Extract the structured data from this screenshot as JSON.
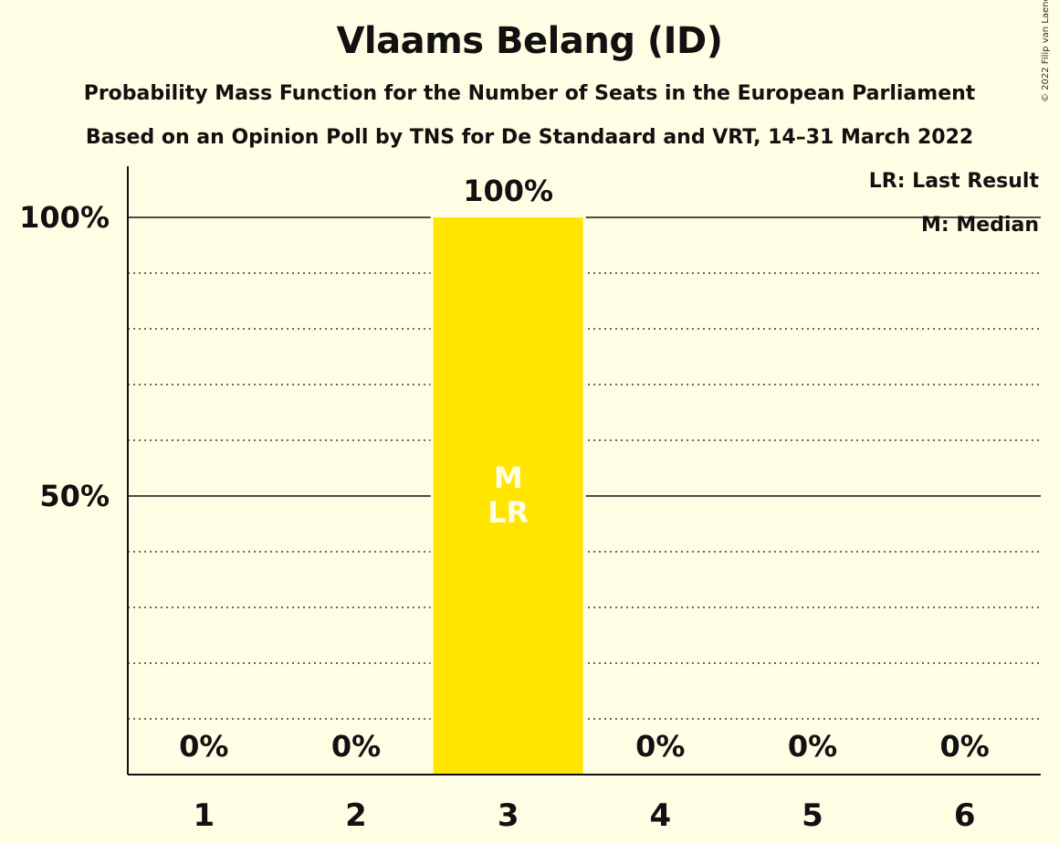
{
  "title": "Vlaams Belang (ID)",
  "subtitle_1": "Probability Mass Function for the Number of Seats in the European Parliament",
  "subtitle_2": "Based on an Opinion Poll by TNS for De Standaard and VRT, 14–31 March 2022",
  "copyright": "© 2022 Filip van Laenen",
  "legend": {
    "last_result": "LR: Last Result",
    "median": "M: Median"
  },
  "colors": {
    "background": "#FFFDE3",
    "bar": "#FFE500",
    "axis": "#111111",
    "marker_text": "#FFFDE3"
  },
  "chart_data": {
    "type": "bar",
    "categories": [
      "1",
      "2",
      "3",
      "4",
      "5",
      "6"
    ],
    "values": [
      0,
      0,
      100,
      0,
      0,
      0
    ],
    "value_labels": [
      "0%",
      "0%",
      "100%",
      "0%",
      "0%",
      "0%"
    ],
    "bar_markers": [
      "",
      "",
      "M\nLR",
      "",
      "",
      ""
    ],
    "ylim": [
      0,
      100
    ],
    "yticks": [
      50,
      100
    ],
    "ytick_labels": [
      "50%",
      "100%"
    ],
    "minor_grid_step": 10,
    "grid": true,
    "legend_position": "top-right"
  }
}
